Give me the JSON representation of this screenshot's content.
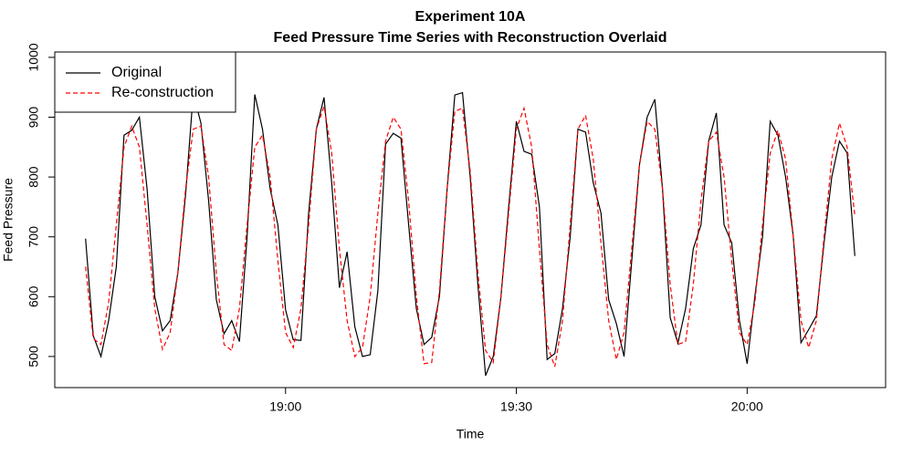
{
  "chart_data": {
    "type": "line",
    "title": "Experiment 10A",
    "subtitle": "Feed Pressure Time Series with Reconstruction Overlaid",
    "x_label": "Time",
    "y_label": "Feed Pressure",
    "x": [
      "18:34",
      "18:35",
      "18:36",
      "18:37",
      "18:38",
      "18:39",
      "18:40",
      "18:41",
      "18:42",
      "18:43",
      "18:44",
      "18:45",
      "18:46",
      "18:47",
      "18:48",
      "18:49",
      "18:50",
      "18:51",
      "18:52",
      "18:53",
      "18:54",
      "18:55",
      "18:56",
      "18:57",
      "18:58",
      "18:59",
      "19:00",
      "19:01",
      "19:02",
      "19:03",
      "19:04",
      "19:05",
      "19:06",
      "19:07",
      "19:08",
      "19:09",
      "19:10",
      "19:11",
      "19:12",
      "19:13",
      "19:14",
      "19:15",
      "19:16",
      "19:17",
      "19:18",
      "19:19",
      "19:20",
      "19:21",
      "19:22",
      "19:23",
      "19:24",
      "19:25",
      "19:26",
      "19:27",
      "19:28",
      "19:29",
      "19:30",
      "19:31",
      "19:32",
      "19:33",
      "19:34",
      "19:35",
      "19:36",
      "19:37",
      "19:38",
      "19:39",
      "19:40",
      "19:41",
      "19:42",
      "19:43",
      "19:44",
      "19:45",
      "19:46",
      "19:47",
      "19:48",
      "19:49",
      "19:50",
      "19:51",
      "19:52",
      "19:53",
      "19:54",
      "19:55",
      "19:56",
      "19:57",
      "19:58",
      "19:59",
      "20:00",
      "20:01",
      "20:02",
      "20:03",
      "20:04",
      "20:05",
      "20:06",
      "20:07",
      "20:08",
      "20:09",
      "20:10",
      "20:11",
      "20:12",
      "20:13",
      "20:14"
    ],
    "series": [
      {
        "name": "Original",
        "color": "#000000",
        "linestyle": "solid",
        "values": [
          697,
          535,
          500,
          560,
          650,
          870,
          878,
          900,
          780,
          600,
          543,
          560,
          640,
          770,
          940,
          890,
          760,
          595,
          538,
          560,
          525,
          700,
          938,
          880,
          780,
          720,
          578,
          528,
          527,
          740,
          880,
          933,
          790,
          615,
          675,
          550,
          500,
          503,
          610,
          855,
          873,
          865,
          720,
          580,
          520,
          532,
          600,
          780,
          937,
          941,
          800,
          620,
          468,
          500,
          600,
          750,
          893,
          843,
          838,
          750,
          495,
          505,
          580,
          700,
          880,
          875,
          790,
          740,
          595,
          555,
          500,
          660,
          820,
          900,
          930,
          780,
          565,
          522,
          580,
          680,
          720,
          860,
          907,
          720,
          690,
          560,
          488,
          600,
          700,
          893,
          870,
          800,
          700,
          523,
          545,
          568,
          690,
          800,
          860,
          840,
          668
        ]
      },
      {
        "name": "Re-construction",
        "color": "#ff0000",
        "linestyle": "dashed",
        "values": [
          650,
          530,
          520,
          590,
          720,
          850,
          885,
          850,
          720,
          580,
          512,
          540,
          640,
          780,
          880,
          885,
          800,
          640,
          520,
          510,
          580,
          720,
          850,
          870,
          800,
          660,
          540,
          515,
          580,
          720,
          880,
          918,
          840,
          680,
          560,
          500,
          515,
          600,
          740,
          860,
          900,
          880,
          760,
          600,
          488,
          490,
          610,
          780,
          910,
          915,
          810,
          640,
          510,
          490,
          600,
          740,
          880,
          915,
          850,
          680,
          520,
          483,
          560,
          720,
          880,
          903,
          830,
          690,
          560,
          495,
          540,
          680,
          820,
          893,
          880,
          780,
          620,
          520,
          525,
          620,
          760,
          860,
          875,
          800,
          660,
          540,
          520,
          590,
          720,
          840,
          878,
          830,
          700,
          560,
          515,
          560,
          700,
          830,
          890,
          850,
          735
        ]
      }
    ],
    "xlim": [
      "18:30",
      "20:18"
    ],
    "xticks": [
      "19:00",
      "19:30",
      "20:00"
    ],
    "ylim": [
      448,
      1009
    ],
    "yticks": [
      500,
      600,
      700,
      800,
      900,
      1000
    ],
    "legend": "topleft"
  }
}
